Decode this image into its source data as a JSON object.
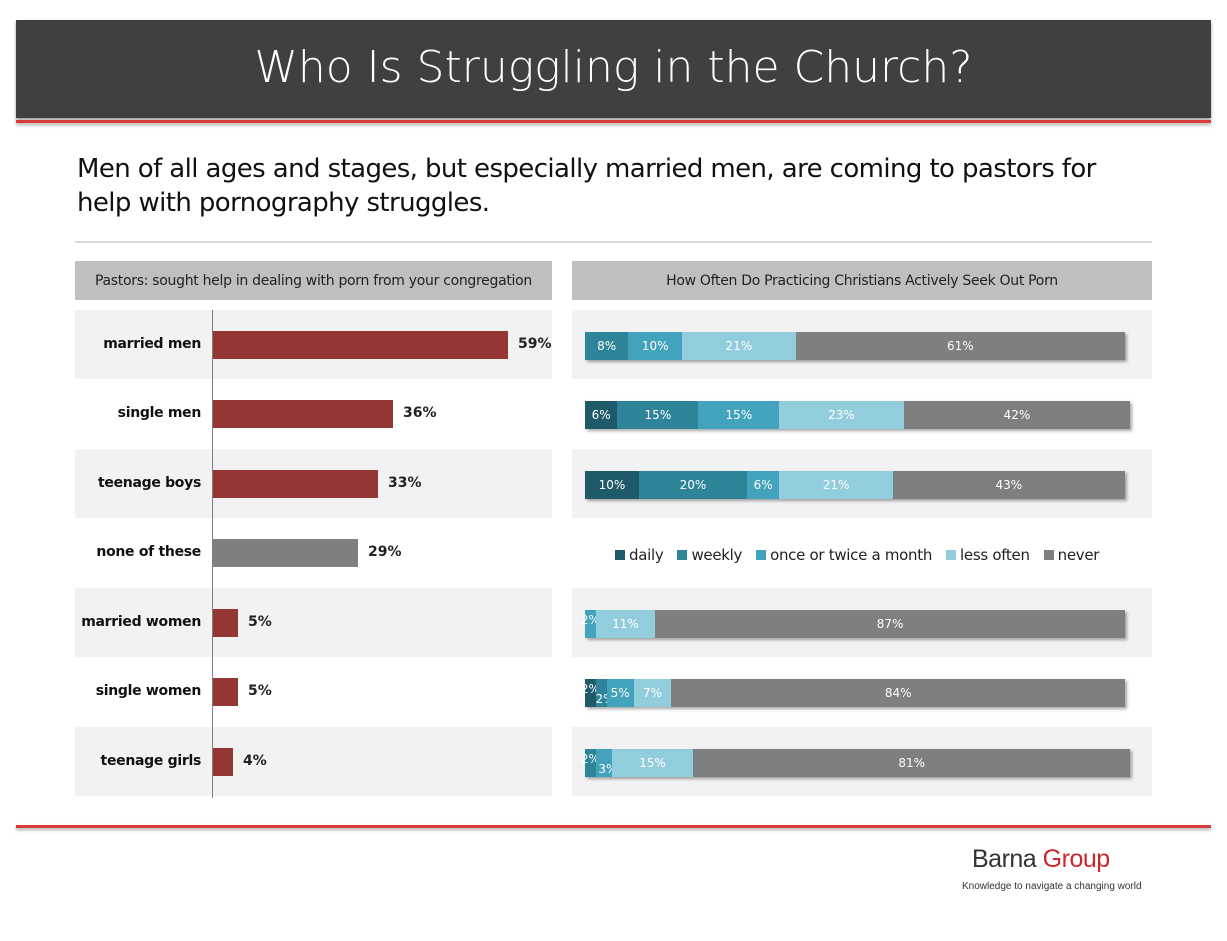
{
  "header": {
    "title": "Who Is Struggling in the Church?"
  },
  "subtitle": "Men of all ages and stages, but especially married men, are coming to pastors for help with pornography struggles.",
  "colors": {
    "red_bar": "#943634",
    "grey_bar": "#7f7f7f",
    "daily": "#1f5a6b",
    "weekly": "#2e8499",
    "monthly": "#43a2bc",
    "less_often": "#92cddd",
    "never": "#7f7f7f",
    "accent_line": "#d83b3b"
  },
  "logo": {
    "word1": "Barna",
    "word2": "Group",
    "tagline": "Knowledge to navigate a changing world"
  },
  "chart_data": [
    {
      "type": "bar",
      "orientation": "horizontal",
      "title": "Pastors: sought help in dealing with porn from your congregation",
      "categories": [
        "married men",
        "single men",
        "teenage boys",
        "none of these",
        "married women",
        "single women",
        "teenage girls"
      ],
      "values": [
        59,
        36,
        33,
        29,
        5,
        5,
        4
      ],
      "labels": [
        "59%",
        "36%",
        "33%",
        "29%",
        "5%",
        "5%",
        "4%"
      ],
      "highlight": [
        true,
        true,
        true,
        false,
        true,
        true,
        true
      ],
      "xlim": [
        0,
        100
      ]
    },
    {
      "type": "bar",
      "orientation": "horizontal",
      "stacked": true,
      "title": "How Often Do Practicing Christians Actively Seek Out Porn",
      "legend_position": "middle",
      "series_names": [
        "daily",
        "weekly",
        "once or twice a month",
        "less often",
        "never"
      ],
      "series_keys": [
        "daily",
        "weekly",
        "monthly",
        "less_often",
        "never"
      ],
      "rows": [
        {
          "row": 0,
          "values": [
            0,
            8,
            10,
            21,
            61
          ]
        },
        {
          "row": 1,
          "values": [
            6,
            15,
            15,
            23,
            42
          ]
        },
        {
          "row": 2,
          "values": [
            10,
            20,
            6,
            21,
            43
          ]
        },
        {
          "row": 4,
          "values": [
            0,
            0,
            2,
            11,
            87
          ]
        },
        {
          "row": 5,
          "values": [
            2,
            2,
            5,
            7,
            84
          ]
        },
        {
          "row": 6,
          "values": [
            0,
            2,
            3,
            15,
            81
          ]
        }
      ]
    }
  ]
}
